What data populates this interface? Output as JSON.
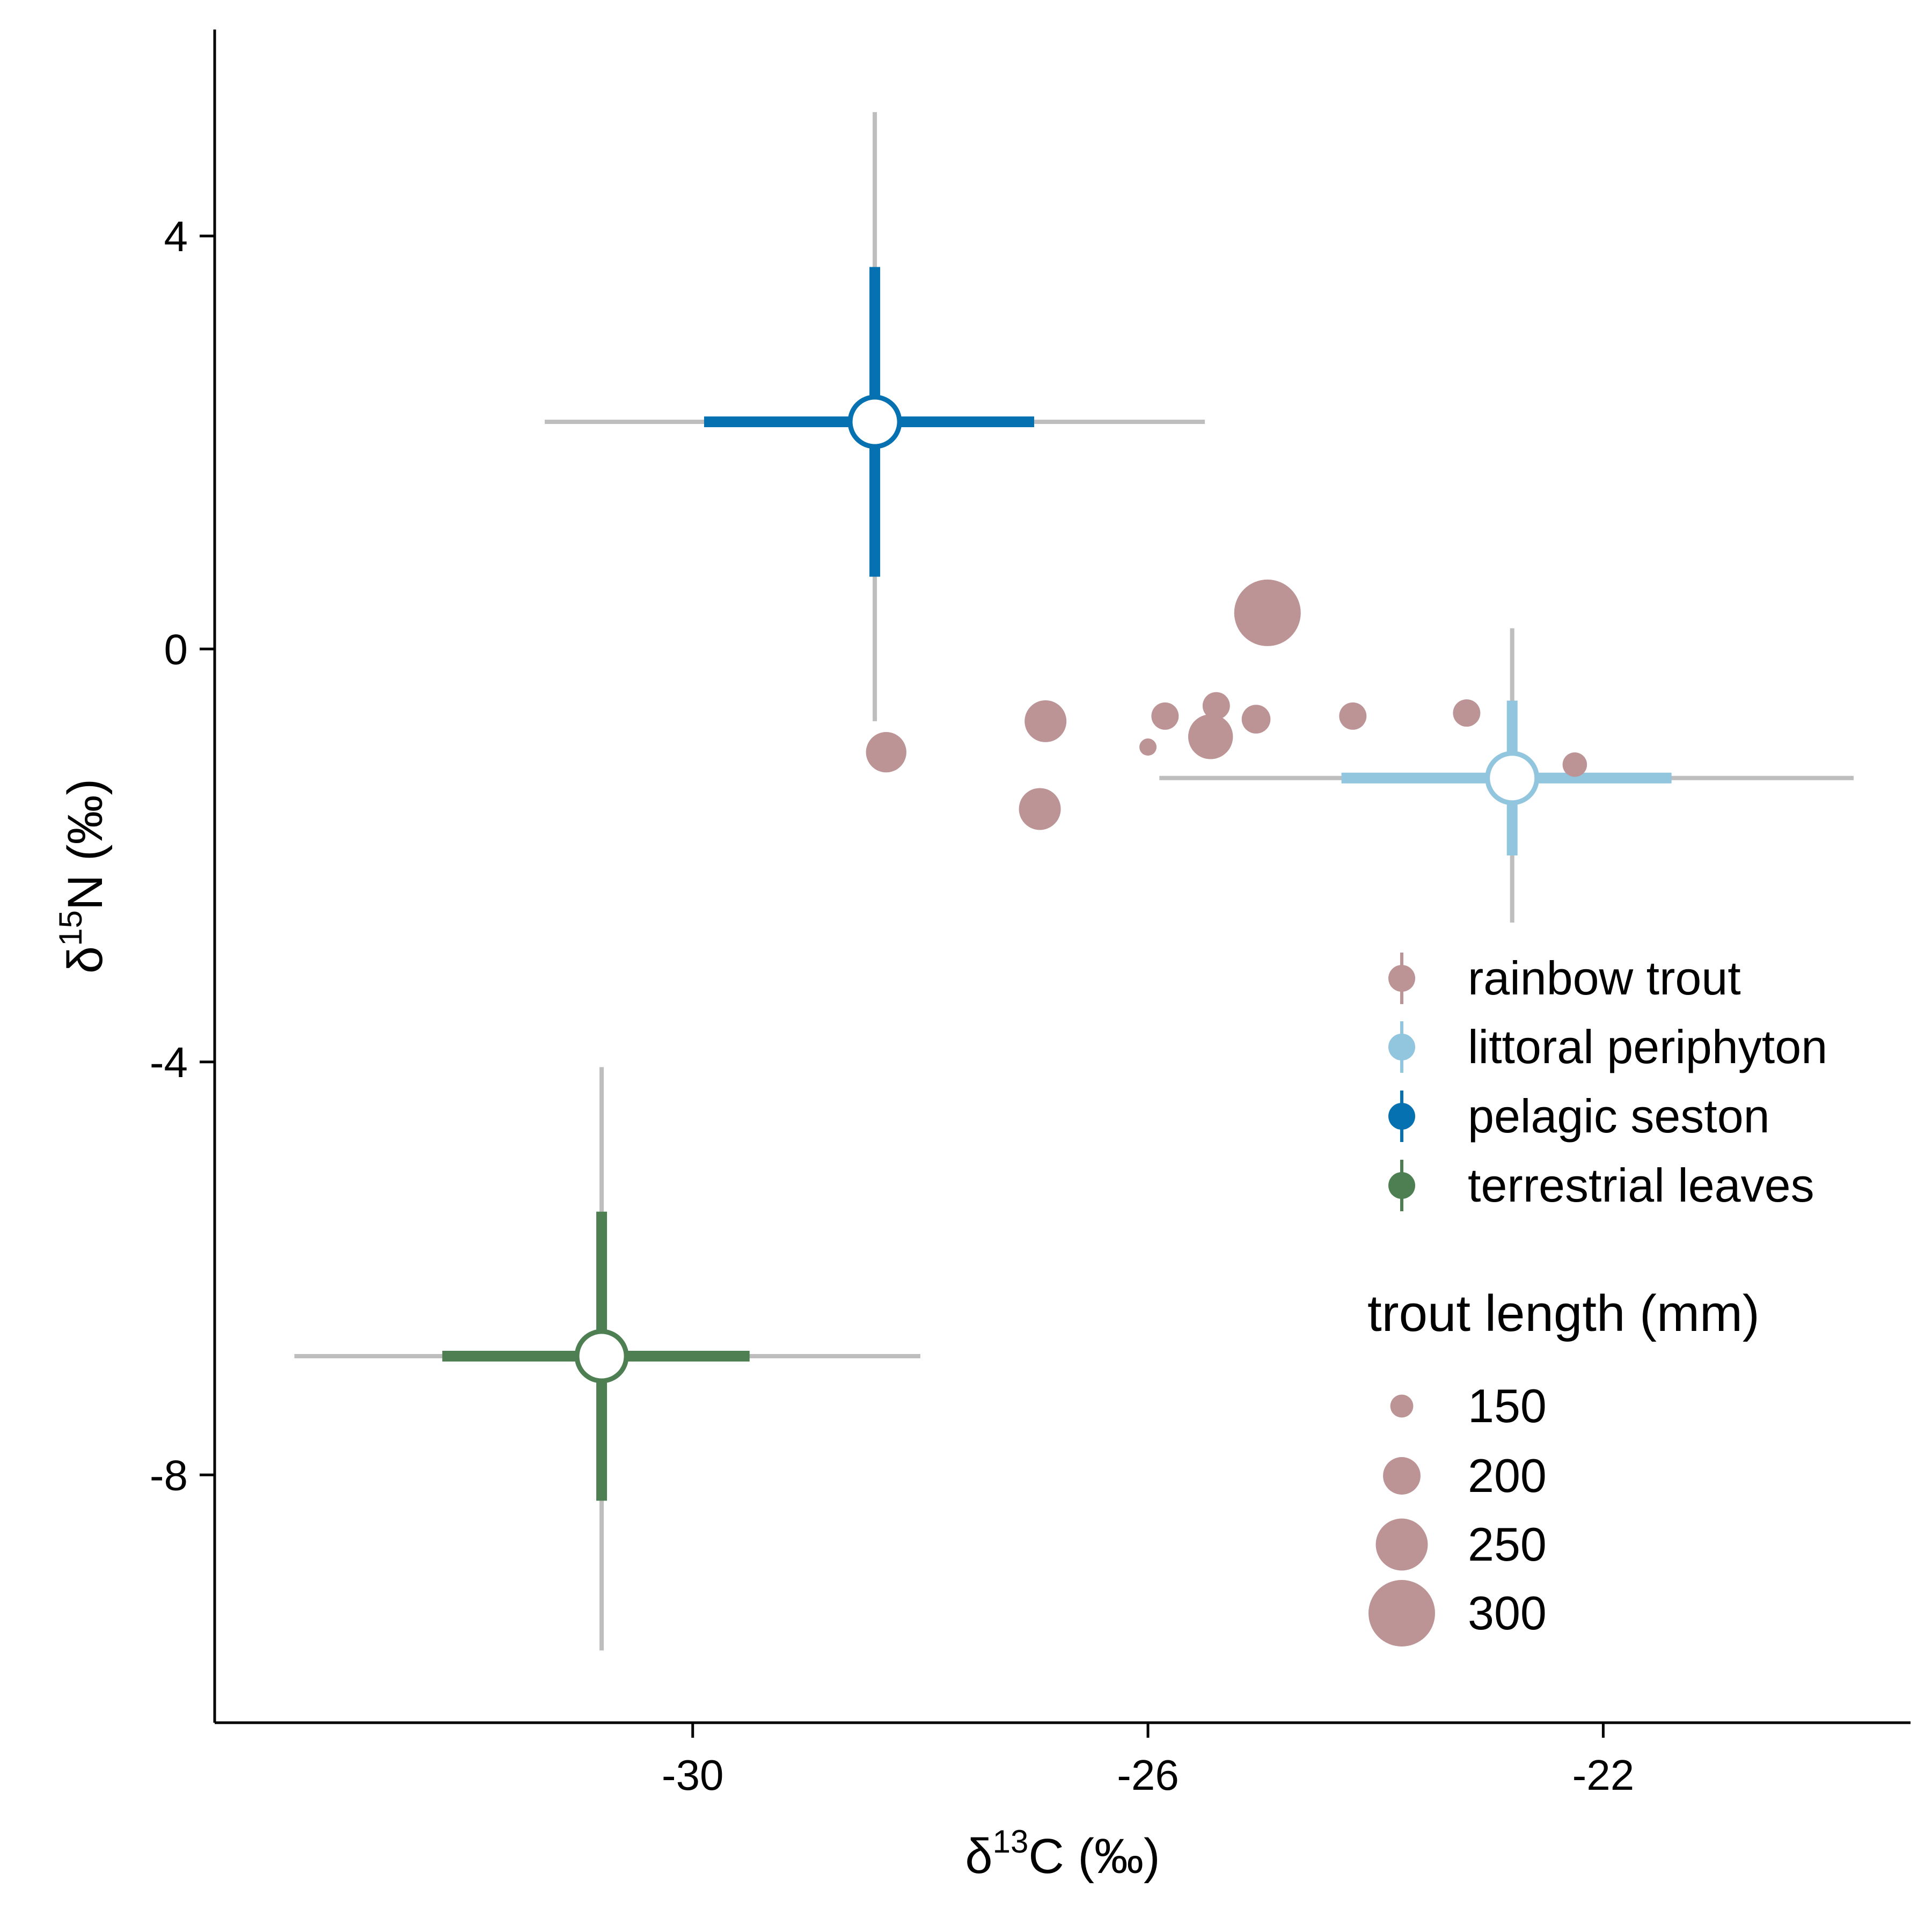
{
  "chart_data": {
    "type": "scatter",
    "xlabel": {
      "symbol": "δ",
      "sup": "13",
      "rest": "C (‰)"
    },
    "ylabel": {
      "symbol": "δ",
      "sup": "15",
      "rest": "N (‰)"
    },
    "xlim": [
      -34.2,
      -19.3
    ],
    "ylim": [
      -10.4,
      6.0
    ],
    "x_ticks": [
      -30,
      -26,
      -22
    ],
    "y_ticks": [
      -8,
      -4,
      0,
      4
    ],
    "x_tick_labels": [
      "-30",
      "-26",
      "-22"
    ],
    "y_tick_labels": [
      "-8",
      "-4",
      "0",
      "4"
    ],
    "grid": false,
    "colors": {
      "rainbow_trout": "#bc9495",
      "littoral_periphyton": "#92c5de",
      "pelagic_seston": "#0571b0",
      "terrestrial_leaves": "#4d7f52",
      "outer_error_bar": "#bebebe"
    },
    "sources": [
      {
        "key": "pelagic_seston",
        "name": "pelagic seston",
        "x": -28.4,
        "y": 2.2,
        "x_inner": [
          -29.9,
          -27.0
        ],
        "y_inner": [
          0.7,
          3.7
        ],
        "x_outer": [
          -31.3,
          -25.5
        ],
        "y_outer": [
          -0.7,
          5.2
        ]
      },
      {
        "key": "littoral_periphyton",
        "name": "littoral periphyton",
        "x": -22.8,
        "y": -1.25,
        "x_inner": [
          -24.3,
          -21.4
        ],
        "y_inner": [
          -2.0,
          -0.5
        ],
        "x_outer": [
          -25.9,
          -19.8
        ],
        "y_outer": [
          -2.65,
          0.2
        ]
      },
      {
        "key": "terrestrial_leaves",
        "name": "terrestrial leaves",
        "x": -30.8,
        "y": -6.85,
        "x_inner": [
          -32.2,
          -29.5
        ],
        "y_inner": [
          -8.25,
          -5.45
        ],
        "x_outer": [
          -33.5,
          -28.0
        ],
        "y_outer": [
          -9.7,
          -4.05
        ]
      }
    ],
    "consumers": {
      "name": "rainbow trout",
      "points": [
        {
          "x": -28.3,
          "y": -1.0,
          "length": 210
        },
        {
          "x": -26.9,
          "y": -0.7,
          "length": 215
        },
        {
          "x": -26.95,
          "y": -1.55,
          "length": 215
        },
        {
          "x": -26.0,
          "y": -0.95,
          "length": 130
        },
        {
          "x": -25.85,
          "y": -0.65,
          "length": 165
        },
        {
          "x": -25.45,
          "y": -0.85,
          "length": 225
        },
        {
          "x": -25.4,
          "y": -0.55,
          "length": 165
        },
        {
          "x": -25.05,
          "y": -0.68,
          "length": 170
        },
        {
          "x": -24.95,
          "y": 0.35,
          "length": 300
        },
        {
          "x": -24.2,
          "y": -0.65,
          "length": 165
        },
        {
          "x": -23.2,
          "y": -0.62,
          "length": 165
        },
        {
          "x": -22.25,
          "y": -1.12,
          "length": 155
        }
      ]
    },
    "legend": {
      "position": "right",
      "groups": [
        {
          "label": "rainbow trout",
          "key": "rainbow_trout"
        },
        {
          "label": "littoral periphyton",
          "key": "littoral_periphyton"
        },
        {
          "label": "pelagic seston",
          "key": "pelagic_seston"
        },
        {
          "label": "terrestrial leaves",
          "key": "terrestrial_leaves"
        }
      ],
      "size_title": "trout length (mm)",
      "sizes": [
        {
          "label": "150",
          "value": 150
        },
        {
          "label": "200",
          "value": 200
        },
        {
          "label": "250",
          "value": 250
        },
        {
          "label": "300",
          "value": 300
        }
      ]
    }
  }
}
